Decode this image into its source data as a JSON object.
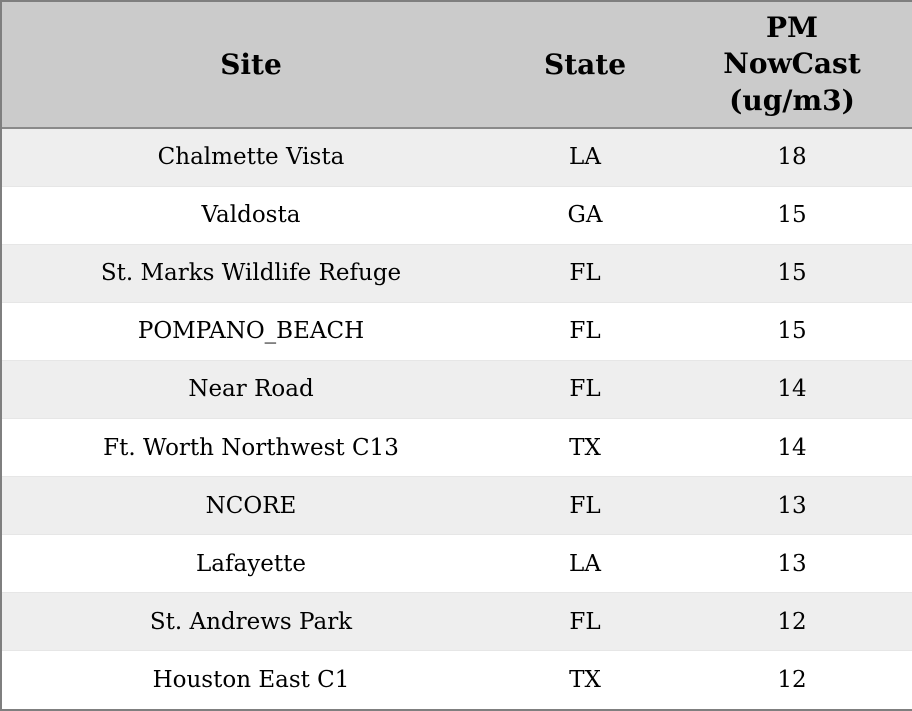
{
  "colors": {
    "header_bg": "#cbcbcb",
    "stripe_row_bg": "#eeeeee",
    "plain_row_bg": "#ffffff",
    "outer_border": "#7f7f7f",
    "text": "#000000"
  },
  "chart_data": {
    "type": "table",
    "title": "",
    "columns": [
      "Site",
      "State",
      "PM NowCast (ug/m3)"
    ],
    "rows": [
      {
        "site": "Chalmette Vista",
        "state": "LA",
        "pm_nowcast": 18
      },
      {
        "site": "Valdosta",
        "state": "GA",
        "pm_nowcast": 15
      },
      {
        "site": "St. Marks Wildlife Refuge",
        "state": "FL",
        "pm_nowcast": 15
      },
      {
        "site": "POMPANO_BEACH",
        "state": "FL",
        "pm_nowcast": 15
      },
      {
        "site": "Near Road",
        "state": "FL",
        "pm_nowcast": 14
      },
      {
        "site": "Ft. Worth Northwest C13",
        "state": "TX",
        "pm_nowcast": 14
      },
      {
        "site": "NCORE",
        "state": "FL",
        "pm_nowcast": 13
      },
      {
        "site": "Lafayette",
        "state": "LA",
        "pm_nowcast": 13
      },
      {
        "site": "St. Andrews Park",
        "state": "FL",
        "pm_nowcast": 12
      },
      {
        "site": "Houston East C1",
        "state": "TX",
        "pm_nowcast": 12
      }
    ]
  }
}
